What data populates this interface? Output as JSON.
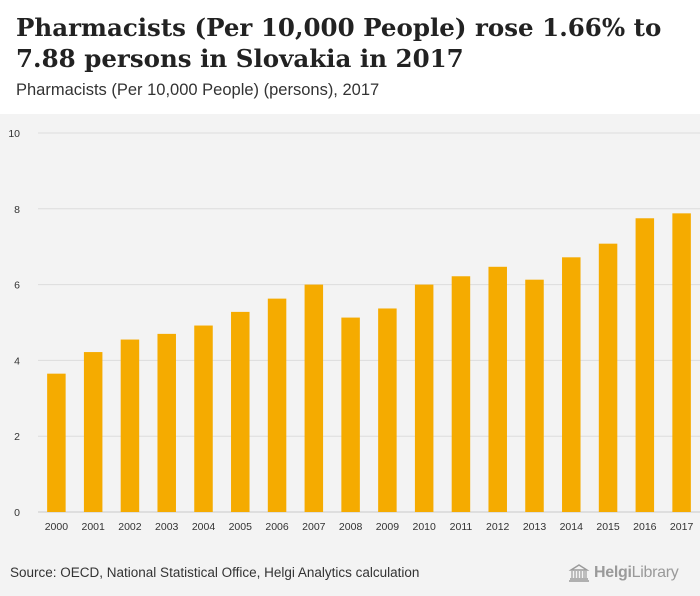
{
  "header": {
    "title": "Pharmacists (Per 10,000 People) rose 1.66% to 7.88 persons in Slovakia in 2017",
    "subtitle": "Pharmacists (Per 10,000 People) (persons), 2017"
  },
  "footer": {
    "source": "Source: OECD, National Statistical Office, Helgi Analytics calculation",
    "logo_bold": "Helgi",
    "logo_light": "Library"
  },
  "colors": {
    "bar": "#f5ab00",
    "grid": "#dcdcdc",
    "plot_bg": "#f3f3f3"
  },
  "chart_data": {
    "type": "bar",
    "title": "Pharmacists (Per 10,000 People) (persons), 2017",
    "xlabel": "",
    "ylabel": "",
    "ylim": [
      0,
      10
    ],
    "yticks": [
      0,
      2,
      4,
      6,
      8,
      10
    ],
    "grid": true,
    "categories": [
      "2000",
      "2001",
      "2002",
      "2003",
      "2004",
      "2005",
      "2006",
      "2007",
      "2008",
      "2009",
      "2010",
      "2011",
      "2012",
      "2013",
      "2014",
      "2015",
      "2016",
      "2017"
    ],
    "values": [
      3.65,
      4.22,
      4.55,
      4.7,
      4.92,
      5.28,
      5.63,
      6.0,
      5.13,
      5.37,
      6.0,
      6.22,
      6.47,
      6.13,
      6.72,
      7.08,
      7.75,
      7.88
    ]
  }
}
